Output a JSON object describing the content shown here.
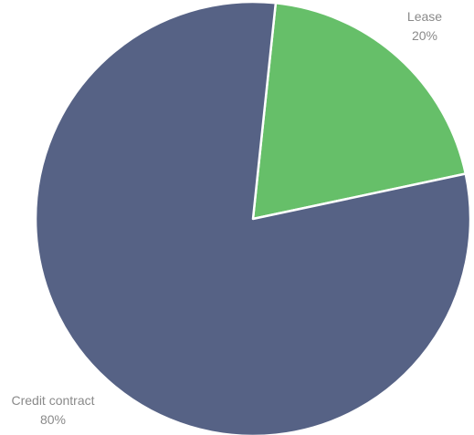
{
  "chart_data": {
    "type": "pie",
    "title": "",
    "slices": [
      {
        "label": "Lease",
        "value": 20,
        "percent_label": "20%",
        "color": "#66bf69"
      },
      {
        "label": "Credit contract",
        "value": 80,
        "percent_label": "80%",
        "color": "#566285"
      }
    ],
    "start_angle_deg": 6,
    "direction": "clockwise",
    "slice_border_color": "#ffffff"
  }
}
